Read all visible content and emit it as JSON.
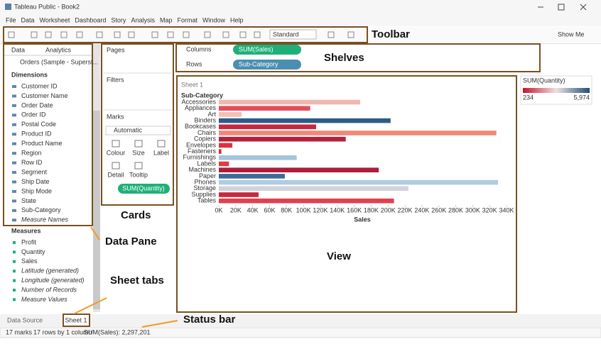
{
  "window": {
    "title": "Tableau Public - Book2"
  },
  "menu": [
    "File",
    "Data",
    "Worksheet",
    "Dashboard",
    "Story",
    "Analysis",
    "Map",
    "Format",
    "Window",
    "Help"
  ],
  "toolbar": {
    "fit": "Standard",
    "show_me": "Show Me"
  },
  "data_pane": {
    "tabs": [
      "Data",
      "Analytics"
    ],
    "source": "Orders (Sample - Superst...",
    "dimensions_title": "Dimensions",
    "dimensions": [
      "Customer ID",
      "Customer Name",
      "Order Date",
      "Order ID",
      "Postal Code",
      "Product ID",
      "Product Name",
      "Region",
      "Row ID",
      "Segment",
      "Ship Date",
      "Ship Mode",
      "State",
      "Sub-Category",
      "Measure Names"
    ],
    "measures_title": "Measures",
    "measures": [
      "Profit",
      "Quantity",
      "Sales",
      "Latitude (generated)",
      "Longitude (generated)",
      "Number of Records",
      "Measure Values"
    ]
  },
  "cards": {
    "pages": "Pages",
    "filters": "Filters",
    "marks": "Marks",
    "mark_type": "Automatic",
    "buttons": [
      "Colour",
      "Size",
      "Label",
      "Detail",
      "Tooltip"
    ],
    "pill": "SUM(Quantity)"
  },
  "shelves": {
    "columns_label": "Columns",
    "columns_pill": "SUM(Sales)",
    "rows_label": "Rows",
    "rows_pill": "Sub-Category"
  },
  "chart_data": {
    "type": "bar",
    "orientation": "horizontal",
    "title": "Sheet 1",
    "y_label": "Sub-Category",
    "x_label": "Sales",
    "categories": [
      "Accessories",
      "Appliances",
      "Art",
      "Binders",
      "Bookcases",
      "Chairs",
      "Copiers",
      "Envelopes",
      "Fasteners",
      "Furnishings",
      "Labels",
      "Machines",
      "Paper",
      "Phones",
      "Storage",
      "Supplies",
      "Tables"
    ],
    "values": [
      167000,
      108000,
      27000,
      203000,
      115000,
      328000,
      150000,
      16000,
      3000,
      92000,
      12000,
      189000,
      78000,
      330000,
      224000,
      47000,
      207000
    ],
    "colors": [
      "#f0b8ae",
      "#e0505a",
      "#f3bfb6",
      "#2e5a87",
      "#c8283e",
      "#f08878",
      "#b8203a",
      "#e03040",
      "#d42a3a",
      "#a4c4dc",
      "#e03a48",
      "#b01c3a",
      "#3e6a98",
      "#b0cce0",
      "#d2d2da",
      "#c8283e",
      "#e04050"
    ],
    "xlim": [
      0,
      340000
    ],
    "xticks": [
      {
        "value": 0,
        "label": "0K"
      },
      {
        "value": 20000,
        "label": "20K"
      },
      {
        "value": 40000,
        "label": "40K"
      },
      {
        "value": 60000,
        "label": "60K"
      },
      {
        "value": 80000,
        "label": "80K"
      },
      {
        "value": 100000,
        "label": "100K"
      },
      {
        "value": 120000,
        "label": "120K"
      },
      {
        "value": 140000,
        "label": "140K"
      },
      {
        "value": 160000,
        "label": "160K"
      },
      {
        "value": 180000,
        "label": "180K"
      },
      {
        "value": 200000,
        "label": "200K"
      },
      {
        "value": 220000,
        "label": "220K"
      },
      {
        "value": 240000,
        "label": "240K"
      },
      {
        "value": 260000,
        "label": "260K"
      },
      {
        "value": 280000,
        "label": "280K"
      },
      {
        "value": 300000,
        "label": "300K"
      },
      {
        "value": 320000,
        "label": "320K"
      },
      {
        "value": 340000,
        "label": "340K"
      }
    ]
  },
  "legend": {
    "title": "SUM(Quantity)",
    "min_label": "234",
    "max_label": "5,974"
  },
  "sheet_tabs": {
    "data_source": "Data Source",
    "sheet": "Sheet 1"
  },
  "status_bar": [
    "17 marks",
    "17 rows by 1 column",
    "SUM(Sales): 2,297,201"
  ],
  "annotations": [
    "Toolbar",
    "Shelves",
    "Cards",
    "Data Pane",
    "View",
    "Sheet tabs",
    "Status bar"
  ]
}
